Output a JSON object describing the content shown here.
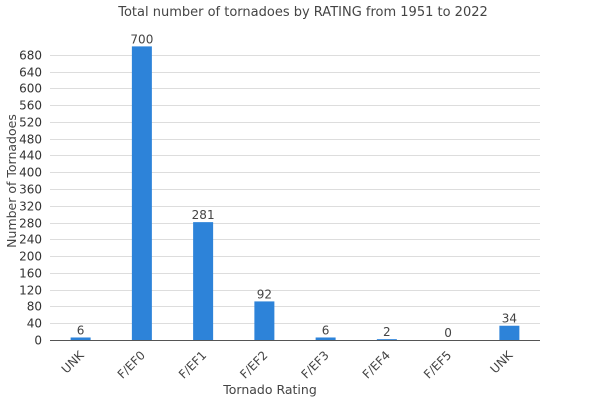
{
  "chart_data": {
    "type": "bar",
    "title": "Total number of tornadoes by RATING from 1951 to 2022",
    "xlabel": "Tornado Rating",
    "ylabel": "Number of Tornadoes",
    "categories": [
      "UNK",
      "F/EF0",
      "F/EF1",
      "F/EF2",
      "F/EF3",
      "F/EF4",
      "F/EF5",
      "UNK"
    ],
    "values": [
      6,
      700,
      281,
      92,
      6,
      2,
      0,
      34
    ],
    "data_labels": [
      "6",
      "700",
      "281",
      "92",
      "6",
      "2",
      "0",
      "34"
    ],
    "ylim": [
      0,
      720
    ],
    "yticks": [
      0,
      40,
      80,
      120,
      160,
      200,
      240,
      280,
      320,
      360,
      400,
      440,
      480,
      520,
      560,
      600,
      640,
      680
    ],
    "grid": true,
    "legend": "none",
    "bar_color": "#2d83d9"
  }
}
